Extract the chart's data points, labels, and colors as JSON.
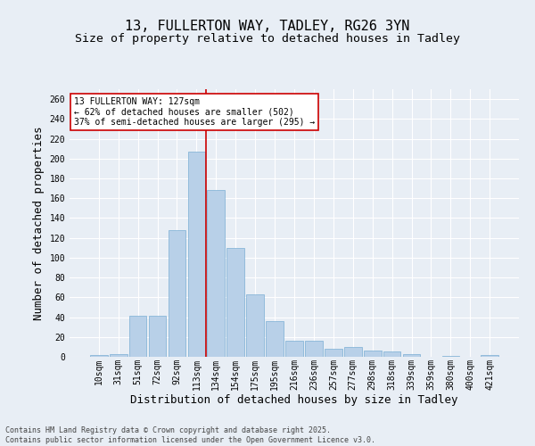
{
  "title_line1": "13, FULLERTON WAY, TADLEY, RG26 3YN",
  "title_line2": "Size of property relative to detached houses in Tadley",
  "xlabel": "Distribution of detached houses by size in Tadley",
  "ylabel": "Number of detached properties",
  "categories": [
    "10sqm",
    "31sqm",
    "51sqm",
    "72sqm",
    "92sqm",
    "113sqm",
    "134sqm",
    "154sqm",
    "175sqm",
    "195sqm",
    "216sqm",
    "236sqm",
    "257sqm",
    "277sqm",
    "298sqm",
    "318sqm",
    "339sqm",
    "359sqm",
    "380sqm",
    "400sqm",
    "421sqm"
  ],
  "values": [
    2,
    3,
    41,
    41,
    128,
    207,
    168,
    110,
    63,
    36,
    16,
    16,
    8,
    10,
    6,
    5,
    3,
    0,
    1,
    0,
    2
  ],
  "bar_color": "#b8d0e8",
  "bar_edge_color": "#7aaed4",
  "vline_x": 5.5,
  "vline_color": "#cc0000",
  "annotation_text": "13 FULLERTON WAY: 127sqm\n← 62% of detached houses are smaller (502)\n37% of semi-detached houses are larger (295) →",
  "annotation_box_color": "#ffffff",
  "annotation_box_edge": "#cc0000",
  "ylim": [
    0,
    270
  ],
  "yticks": [
    0,
    20,
    40,
    60,
    80,
    100,
    120,
    140,
    160,
    180,
    200,
    220,
    240,
    260
  ],
  "bg_color": "#e8eef5",
  "plot_bg_color": "#e8eef5",
  "footer_text": "Contains HM Land Registry data © Crown copyright and database right 2025.\nContains public sector information licensed under the Open Government Licence v3.0.",
  "title_fontsize": 11,
  "subtitle_fontsize": 9.5,
  "tick_fontsize": 7,
  "label_fontsize": 9,
  "footer_fontsize": 6
}
